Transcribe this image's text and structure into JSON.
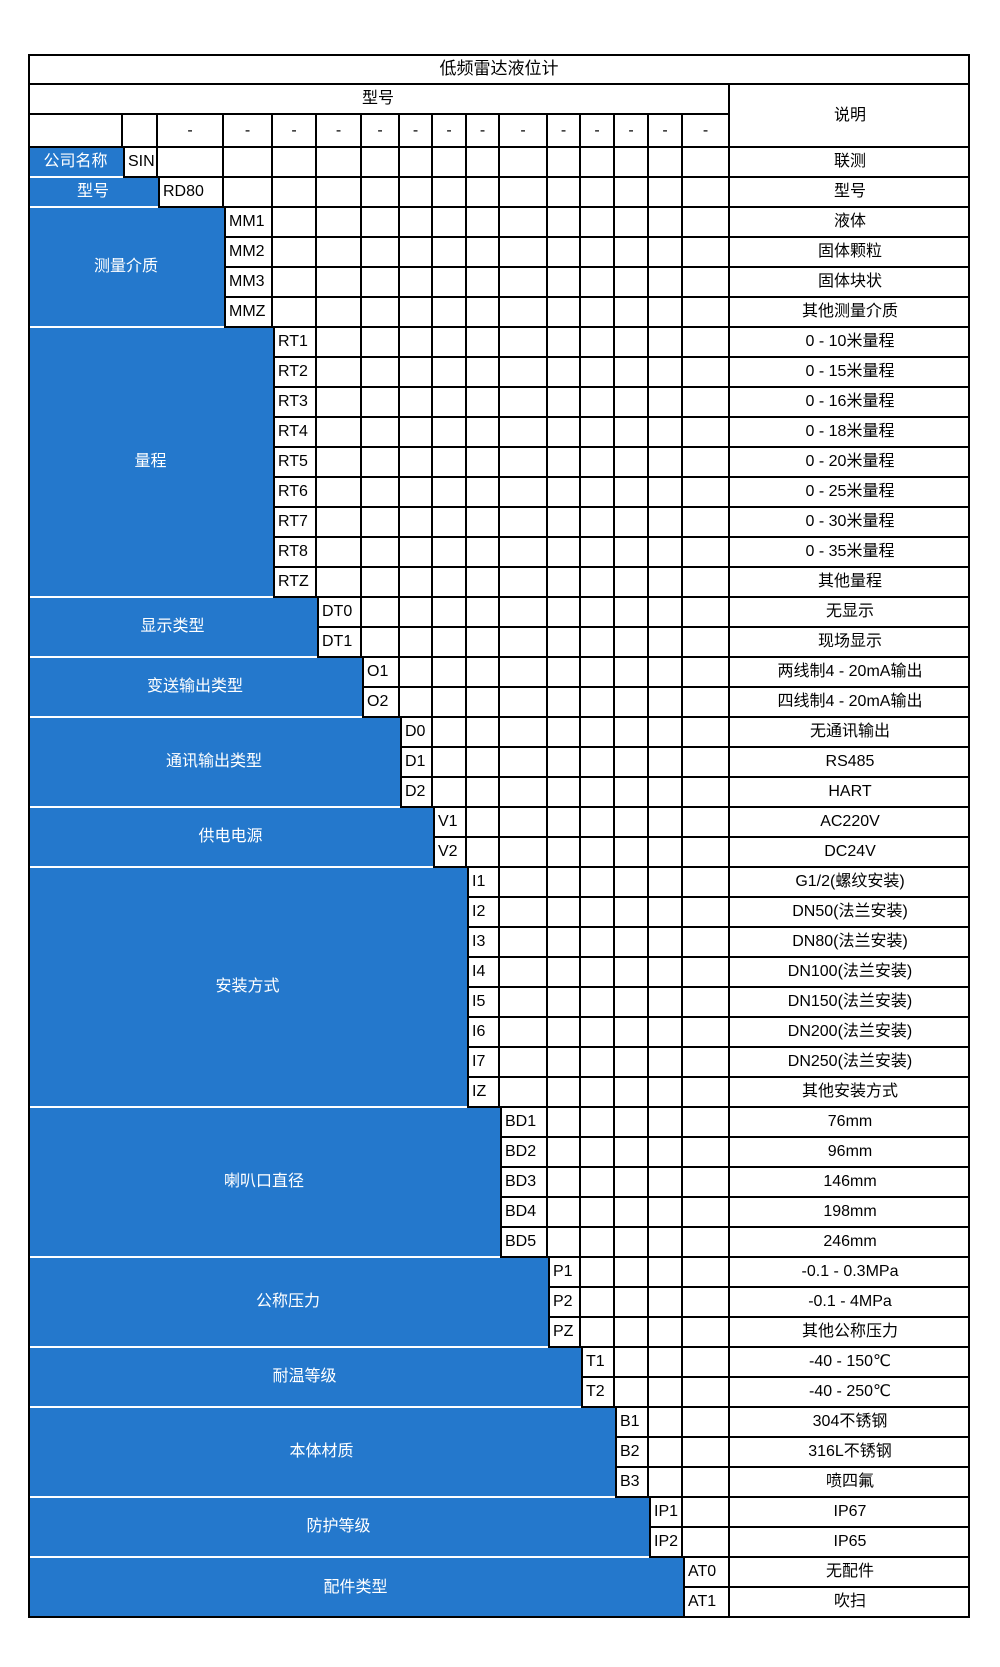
{
  "title": "低频雷达液位计",
  "header": {
    "model_label": "型号",
    "desc_label": "说明",
    "dash": "-"
  },
  "colors": {
    "blue": "#2478CC",
    "border": "#000000",
    "label_text": "#ffffff",
    "text": "#000000"
  },
  "sections": [
    {
      "name": "company",
      "label": "公司名称",
      "rows": [
        {
          "code": "SIN",
          "desc": "联测"
        }
      ]
    },
    {
      "name": "model",
      "label": "型号",
      "rows": [
        {
          "code": "RD80",
          "desc": "型号"
        }
      ]
    },
    {
      "name": "medium",
      "label": "测量介质",
      "rows": [
        {
          "code": "MM1",
          "desc": "液体"
        },
        {
          "code": "MM2",
          "desc": "固体颗粒"
        },
        {
          "code": "MM3",
          "desc": "固体块状"
        },
        {
          "code": "MMZ",
          "desc": "其他测量介质"
        }
      ]
    },
    {
      "name": "range",
      "label": "量程",
      "rows": [
        {
          "code": "RT1",
          "desc": "0 - 10米量程"
        },
        {
          "code": "RT2",
          "desc": "0 - 15米量程"
        },
        {
          "code": "RT3",
          "desc": "0 - 16米量程"
        },
        {
          "code": "RT4",
          "desc": "0 - 18米量程"
        },
        {
          "code": "RT5",
          "desc": "0 - 20米量程"
        },
        {
          "code": "RT6",
          "desc": "0 - 25米量程"
        },
        {
          "code": "RT7",
          "desc": "0 - 30米量程"
        },
        {
          "code": "RT8",
          "desc": "0 - 35米量程"
        },
        {
          "code": "RTZ",
          "desc": "其他量程"
        }
      ]
    },
    {
      "name": "display-type",
      "label": "显示类型",
      "rows": [
        {
          "code": "DT0",
          "desc": "无显示"
        },
        {
          "code": "DT1",
          "desc": "现场显示"
        }
      ]
    },
    {
      "name": "transmit-output",
      "label": "变送输出类型",
      "rows": [
        {
          "code": "O1",
          "desc": "两线制4 - 20mA输出"
        },
        {
          "code": "O2",
          "desc": "四线制4 - 20mA输出"
        }
      ]
    },
    {
      "name": "comm-output",
      "label": "通讯输出类型",
      "rows": [
        {
          "code": "D0",
          "desc": "无通讯输出"
        },
        {
          "code": "D1",
          "desc": "RS485"
        },
        {
          "code": "D2",
          "desc": "HART"
        }
      ]
    },
    {
      "name": "power-supply",
      "label": "供电电源",
      "rows": [
        {
          "code": "V1",
          "desc": "AC220V"
        },
        {
          "code": "V2",
          "desc": "DC24V"
        }
      ]
    },
    {
      "name": "installation",
      "label": "安装方式",
      "rows": [
        {
          "code": "I1",
          "desc": "G1/2(螺纹安装)"
        },
        {
          "code": "I2",
          "desc": "DN50(法兰安装)"
        },
        {
          "code": "I3",
          "desc": "DN80(法兰安装)"
        },
        {
          "code": "I4",
          "desc": "DN100(法兰安装)"
        },
        {
          "code": "I5",
          "desc": "DN150(法兰安装)"
        },
        {
          "code": "I6",
          "desc": "DN200(法兰安装)"
        },
        {
          "code": "I7",
          "desc": "DN250(法兰安装)"
        },
        {
          "code": "IZ",
          "desc": "其他安装方式"
        }
      ]
    },
    {
      "name": "horn-diameter",
      "label": "喇叭口直径",
      "rows": [
        {
          "code": "BD1",
          "desc": "76mm"
        },
        {
          "code": "BD2",
          "desc": "96mm"
        },
        {
          "code": "BD3",
          "desc": "146mm"
        },
        {
          "code": "BD4",
          "desc": "198mm"
        },
        {
          "code": "BD5",
          "desc": "246mm"
        }
      ]
    },
    {
      "name": "pressure",
      "label": "公称压力",
      "rows": [
        {
          "code": "P1",
          "desc": "-0.1 - 0.3MPa"
        },
        {
          "code": "P2",
          "desc": "-0.1 - 4MPa"
        },
        {
          "code": "PZ",
          "desc": "其他公称压力"
        }
      ]
    },
    {
      "name": "temperature",
      "label": "耐温等级",
      "rows": [
        {
          "code": "T1",
          "desc": "-40 - 150℃"
        },
        {
          "code": "T2",
          "desc": "-40 - 250℃"
        }
      ]
    },
    {
      "name": "body-material",
      "label": "本体材质",
      "rows": [
        {
          "code": "B1",
          "desc": "304不锈钢"
        },
        {
          "code": "B2",
          "desc": "316L不锈钢"
        },
        {
          "code": "B3",
          "desc": "喷四氟"
        }
      ]
    },
    {
      "name": "protection",
      "label": "防护等级",
      "rows": [
        {
          "code": "IP1",
          "desc": "IP67"
        },
        {
          "code": "IP2",
          "desc": "IP65"
        }
      ]
    },
    {
      "name": "accessory",
      "label": "配件类型",
      "rows": [
        {
          "code": "AT0",
          "desc": "无配件"
        },
        {
          "code": "AT1",
          "desc": "吹扫"
        }
      ]
    }
  ]
}
